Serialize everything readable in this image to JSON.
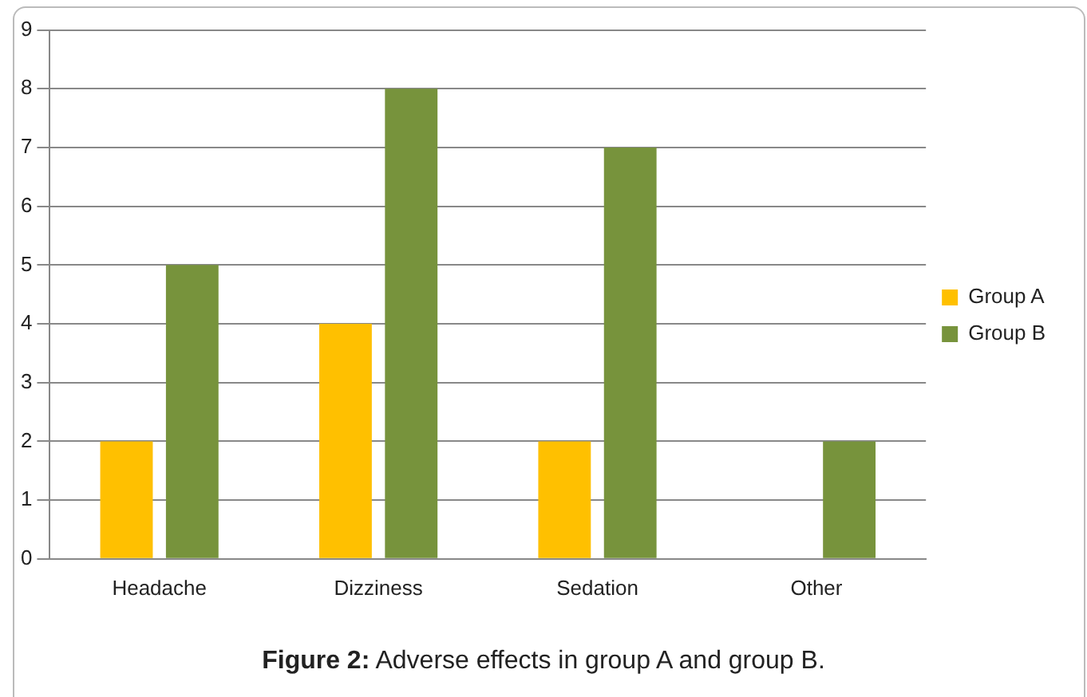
{
  "chart_data": {
    "type": "bar",
    "categories": [
      "Headache",
      "Dizziness",
      "Sedation",
      "Other"
    ],
    "series": [
      {
        "name": "Group A",
        "color": "#ffc000",
        "values": [
          2,
          4,
          2,
          0
        ]
      },
      {
        "name": "Group B",
        "color": "#77933c",
        "values": [
          5,
          8,
          7,
          2
        ]
      }
    ],
    "ylim": [
      0,
      9
    ],
    "yticks": [
      0,
      1,
      2,
      3,
      4,
      5,
      6,
      7,
      8,
      9
    ],
    "grid": "y",
    "legend": "right",
    "annotations": [
      "Figure 2: Adverse effects in group A and group B."
    ]
  }
}
